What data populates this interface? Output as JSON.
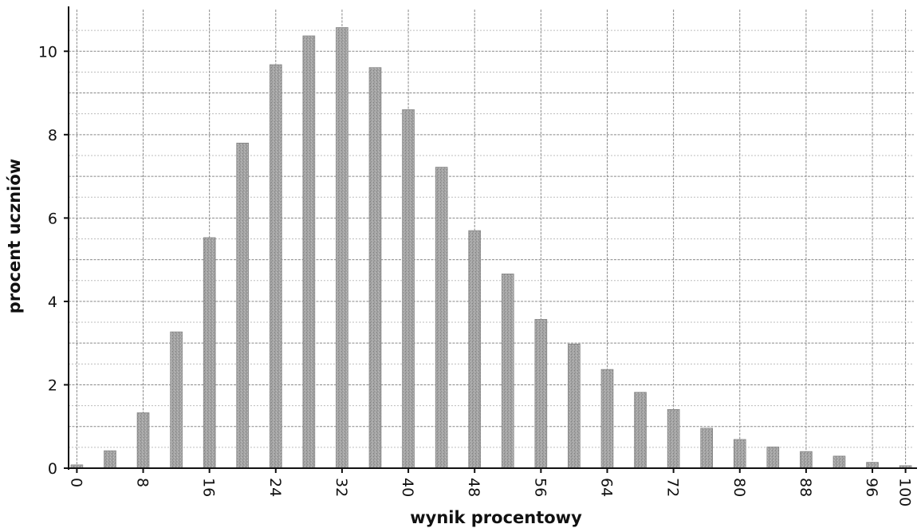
{
  "chart_data": {
    "type": "bar",
    "title": "",
    "xlabel": "wynik procentowy",
    "ylabel": "procent uczniów",
    "ylim": [
      0,
      11
    ],
    "yticks": [
      0,
      2,
      4,
      6,
      8,
      10
    ],
    "xlim": [
      -1,
      101
    ],
    "xticks": [
      "0",
      "8",
      "16",
      "24",
      "32",
      "40",
      "48",
      "56",
      "64",
      "72",
      "80",
      "88",
      "96",
      "100"
    ],
    "grid": true,
    "bar_color": "#9e9e9e",
    "points": [
      {
        "x": 0,
        "y": 0.08
      },
      {
        "x": 4,
        "y": 0.42
      },
      {
        "x": 8,
        "y": 1.33
      },
      {
        "x": 12,
        "y": 3.27
      },
      {
        "x": 16,
        "y": 5.53
      },
      {
        "x": 20,
        "y": 7.8
      },
      {
        "x": 24,
        "y": 9.68
      },
      {
        "x": 28,
        "y": 10.37
      },
      {
        "x": 32,
        "y": 10.57
      },
      {
        "x": 36,
        "y": 9.61
      },
      {
        "x": 40,
        "y": 8.6
      },
      {
        "x": 44,
        "y": 7.22
      },
      {
        "x": 48,
        "y": 5.7
      },
      {
        "x": 52,
        "y": 4.66
      },
      {
        "x": 56,
        "y": 3.57
      },
      {
        "x": 60,
        "y": 2.98
      },
      {
        "x": 64,
        "y": 2.37
      },
      {
        "x": 68,
        "y": 1.82
      },
      {
        "x": 72,
        "y": 1.41
      },
      {
        "x": 76,
        "y": 0.96
      },
      {
        "x": 80,
        "y": 0.69
      },
      {
        "x": 84,
        "y": 0.51
      },
      {
        "x": 88,
        "y": 0.4
      },
      {
        "x": 92,
        "y": 0.29
      },
      {
        "x": 96,
        "y": 0.14
      },
      {
        "x": 100,
        "y": 0.06
      }
    ]
  }
}
